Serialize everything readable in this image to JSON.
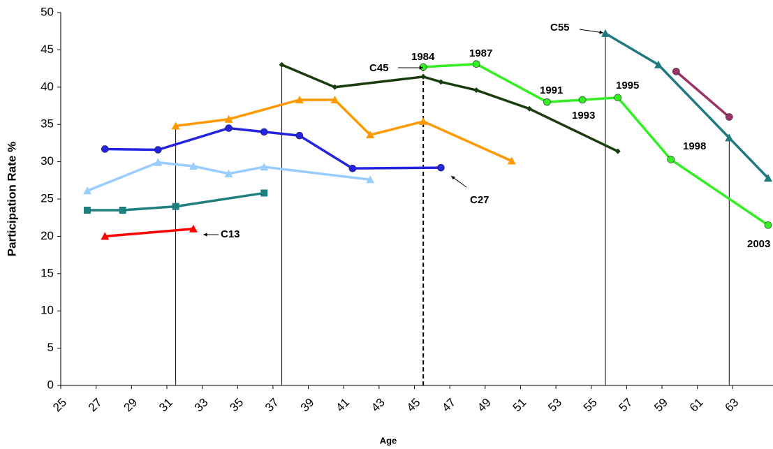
{
  "chart_data": {
    "type": "line",
    "xlabel": "Age",
    "ylabel": "Participation Rate %",
    "xlim": [
      25,
      65
    ],
    "ylim": [
      0,
      50
    ],
    "xticks": [
      25,
      27,
      29,
      31,
      33,
      35,
      37,
      39,
      41,
      43,
      45,
      47,
      49,
      51,
      53,
      55,
      57,
      59,
      61,
      63
    ],
    "yticks": [
      0,
      5,
      10,
      15,
      20,
      25,
      30,
      35,
      40,
      45,
      50
    ],
    "grid": false,
    "series": [
      {
        "color": "#ff0000",
        "marker": "triangle",
        "x": [
          27.5,
          32.5
        ],
        "values": [
          20.0,
          21.0
        ]
      },
      {
        "color": "#1f8080",
        "marker": "square",
        "x": [
          26.5,
          28.5,
          31.5,
          36.5
        ],
        "values": [
          23.5,
          23.5,
          24.0,
          25.8
        ]
      },
      {
        "color": "#99ccff",
        "marker": "triangle",
        "x": [
          26.5,
          30.5,
          32.5,
          34.5,
          36.5,
          42.5
        ],
        "values": [
          26.1,
          29.9,
          29.4,
          28.4,
          29.3,
          27.6
        ]
      },
      {
        "color": "#2424e0",
        "marker": "circle",
        "x": [
          27.5,
          30.5,
          34.5,
          36.5,
          38.5,
          41.5,
          46.5
        ],
        "values": [
          31.7,
          31.6,
          34.5,
          34.0,
          33.5,
          29.1,
          29.2
        ]
      },
      {
        "color": "#ff9900",
        "marker": "triangle",
        "x": [
          31.5,
          34.5,
          38.5,
          40.5,
          42.5,
          45.5,
          50.5
        ],
        "values": [
          34.8,
          35.7,
          38.3,
          38.3,
          33.6,
          35.4,
          30.1
        ]
      },
      {
        "color": "#1a3d0f",
        "marker": "diamond",
        "x": [
          37.5,
          40.5,
          45.5,
          46.5,
          48.5,
          51.5,
          56.5
        ],
        "values": [
          43.0,
          40.0,
          41.4,
          40.7,
          39.6,
          37.1,
          31.4
        ]
      },
      {
        "color": "#33ee22",
        "marker": "circle",
        "x": [
          45.5,
          48.5,
          52.5,
          54.5,
          56.5,
          59.5,
          65
        ],
        "values": [
          42.7,
          43.1,
          38.0,
          38.3,
          38.6,
          30.3,
          21.5
        ]
      },
      {
        "color": "#1f7a80",
        "marker": "triangle",
        "x": [
          55.8,
          58.8,
          62.8,
          65
        ],
        "values": [
          47.2,
          43.0,
          33.2,
          27.8
        ]
      },
      {
        "color": "#993366",
        "marker": "circle",
        "x": [
          59.8,
          62.8
        ],
        "values": [
          42.1,
          36.0
        ]
      }
    ],
    "vlines": [
      {
        "x": 31.5,
        "y": 34.8,
        "dashed": false
      },
      {
        "x": 37.5,
        "y": 43.0,
        "dashed": false
      },
      {
        "x": 45.5,
        "y": 42.7,
        "dashed": true
      },
      {
        "x": 55.8,
        "y": 47.2,
        "dashed": false
      },
      {
        "x": 62.8,
        "y": 33.2,
        "dashed": false
      }
    ],
    "annotations": [
      "C13",
      "C27",
      "C45",
      "C55",
      "1984",
      "1987",
      "1991",
      "1993",
      "1995",
      "1998",
      "2003"
    ]
  }
}
